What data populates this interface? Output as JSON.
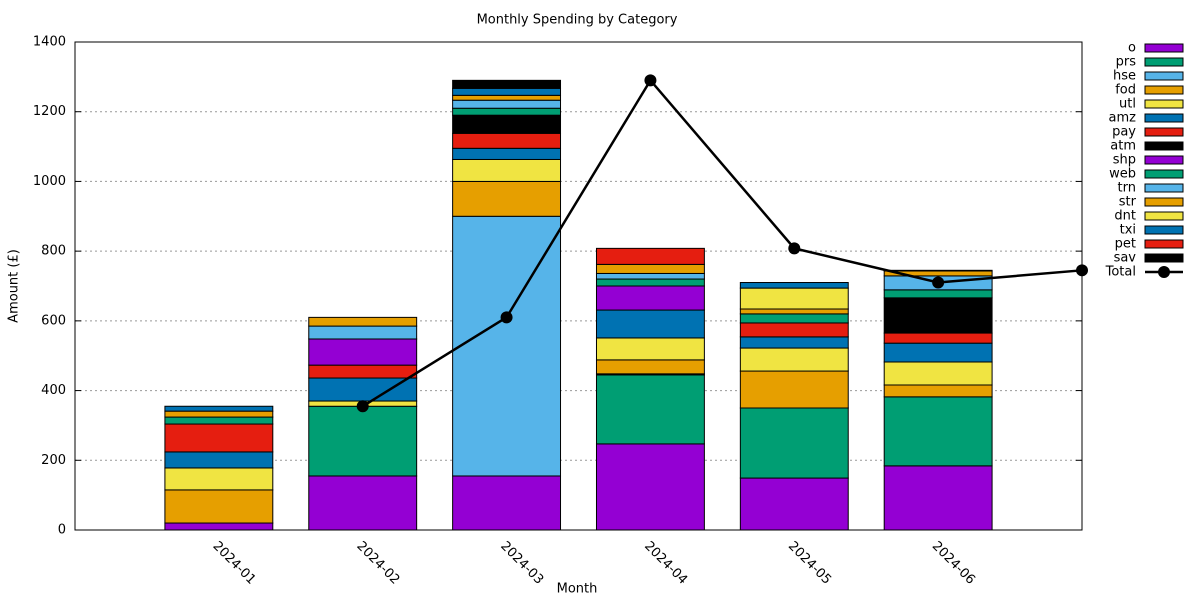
{
  "chart_data": {
    "type": "bar",
    "title": "Monthly Spending by Category",
    "x_label": "Month",
    "y_label": "Amount (£)",
    "categories": [
      "2024-01",
      "2024-02",
      "2024-03",
      "2024-04",
      "2024-05",
      "2024-06"
    ],
    "xlim": [
      -1,
      6
    ],
    "ylim": [
      0,
      1400
    ],
    "yticks": [
      0,
      200,
      400,
      600,
      800,
      1000,
      1200,
      1400
    ],
    "grid": true,
    "series": [
      {
        "name": "o",
        "color": "#9400d3",
        "values": [
          20,
          155,
          155,
          247,
          149,
          184
        ]
      },
      {
        "name": "prs",
        "color": "#009e73",
        "values": [
          0,
          200,
          0,
          198,
          201,
          198
        ]
      },
      {
        "name": "hse",
        "color": "#56b4e9",
        "values": [
          0,
          0,
          745,
          3,
          0,
          0
        ]
      },
      {
        "name": "fod",
        "color": "#e69f00",
        "values": [
          95,
          0,
          100,
          40,
          106,
          34
        ]
      },
      {
        "name": "utl",
        "color": "#f0e442",
        "values": [
          63,
          15,
          63,
          63,
          66,
          66
        ]
      },
      {
        "name": "amz",
        "color": "#0072b2",
        "values": [
          46,
          66,
          32,
          80,
          32,
          54
        ]
      },
      {
        "name": "pay",
        "color": "#e51e10",
        "values": [
          80,
          37,
          43,
          0,
          40,
          29
        ]
      },
      {
        "name": "atm",
        "color": "#000000",
        "values": [
          0,
          0,
          52,
          0,
          0,
          101
        ]
      },
      {
        "name": "shp",
        "color": "#9400d3",
        "values": [
          0,
          75,
          0,
          69,
          0,
          0
        ]
      },
      {
        "name": "web",
        "color": "#009e73",
        "values": [
          20,
          0,
          20,
          20,
          26,
          23
        ]
      },
      {
        "name": "trn",
        "color": "#56b4e9",
        "values": [
          0,
          37,
          23,
          16,
          0,
          40
        ]
      },
      {
        "name": "str",
        "color": "#e69f00",
        "values": [
          17,
          25,
          14,
          26,
          14,
          14
        ]
      },
      {
        "name": "dnt",
        "color": "#f0e442",
        "values": [
          0,
          0,
          0,
          0,
          60,
          2
        ]
      },
      {
        "name": "txi",
        "color": "#0072b2",
        "values": [
          14,
          0,
          20,
          0,
          16,
          0
        ]
      },
      {
        "name": "pet",
        "color": "#e51e10",
        "values": [
          0,
          0,
          0,
          46,
          0,
          0
        ]
      },
      {
        "name": "sav",
        "color": "#000000",
        "values": [
          0,
          0,
          23,
          0,
          0,
          0
        ]
      },
      {
        "name": "Total",
        "type": "line",
        "color": "#000000",
        "x": [
          1,
          2,
          3,
          4,
          5,
          6
        ],
        "values": [
          355,
          610,
          1290,
          808,
          710,
          745
        ]
      }
    ]
  }
}
